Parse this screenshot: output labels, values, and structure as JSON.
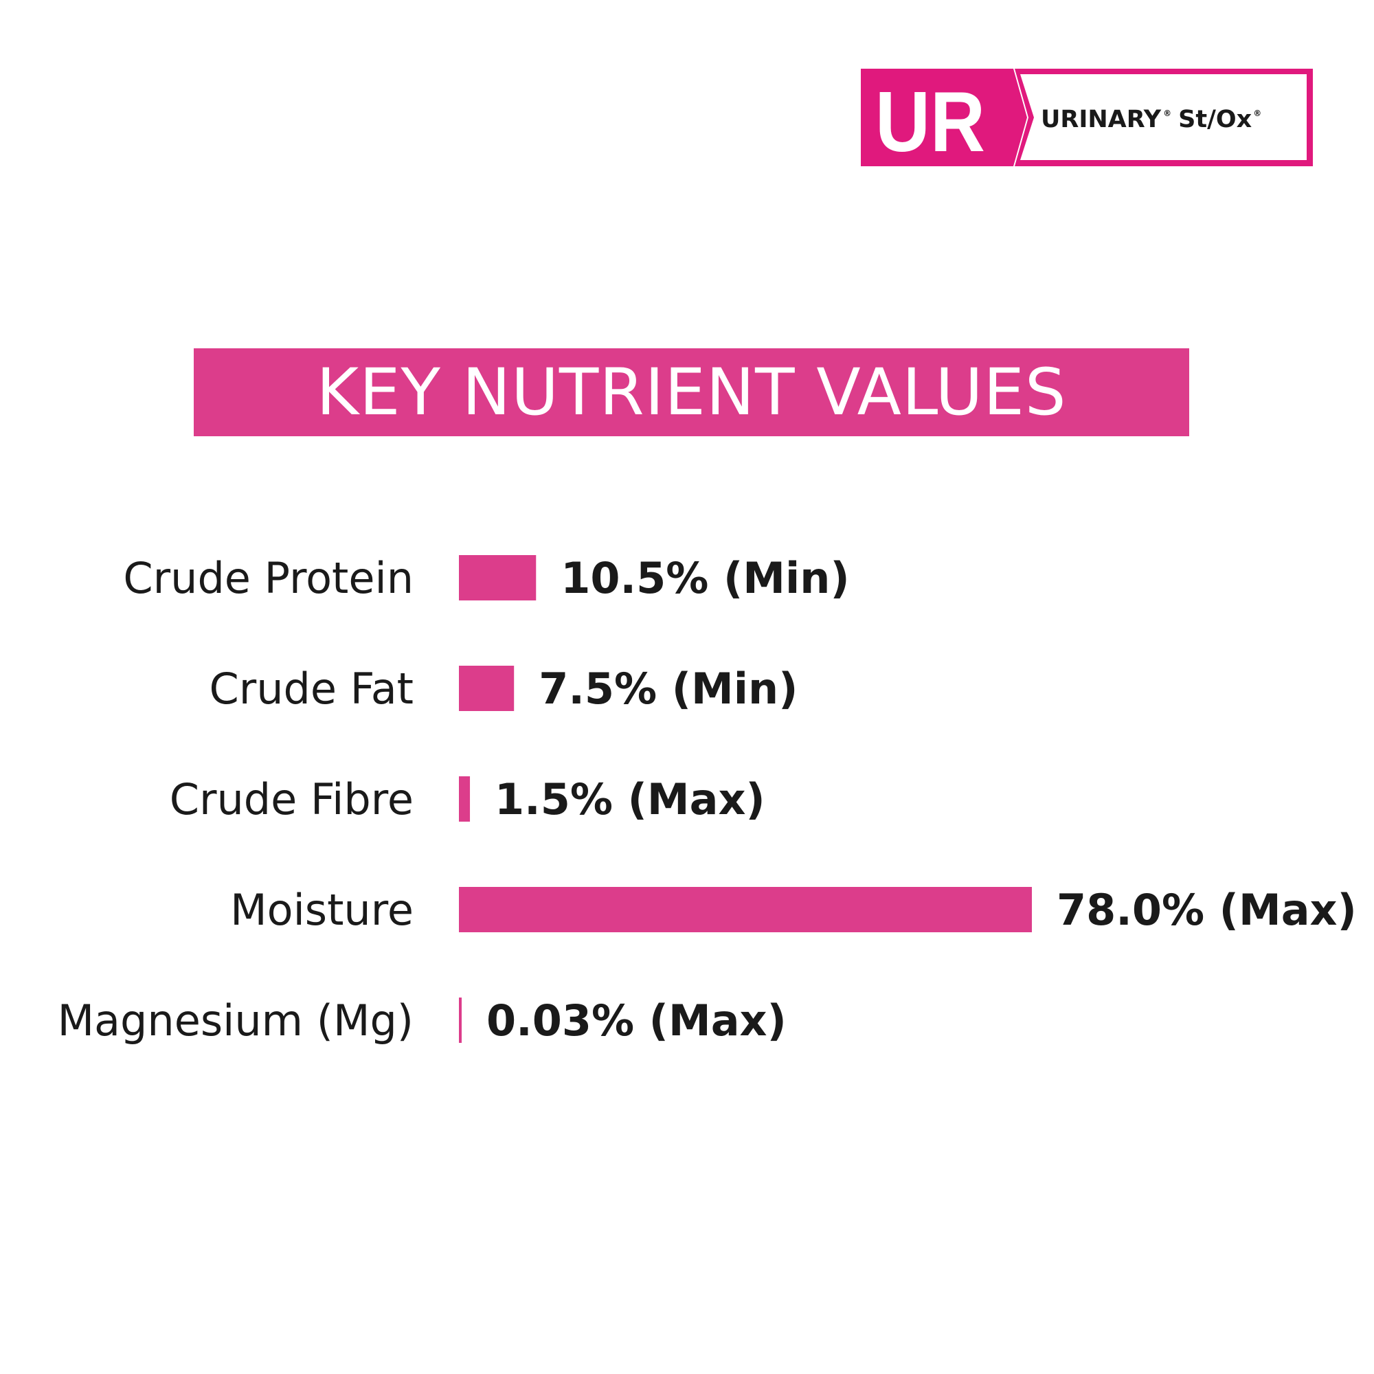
{
  "brand": {
    "code": "UR",
    "name": "URINARY",
    "name_mark": "®",
    "variant": "St/Ox",
    "variant_mark": "®",
    "color": "#e0197d",
    "icon": "brand-badge"
  },
  "chart_data": {
    "type": "bar",
    "orientation": "horizontal",
    "title": "KEY NUTRIENT VALUES",
    "xlabel": "",
    "ylabel": "",
    "grid": false,
    "xlim": [
      0,
      78
    ],
    "unit": "%",
    "bar_color": "#dc3d8b",
    "title_bg_color": "#dc3d8b",
    "categories": [
      "Crude Protein",
      "Crude Fat",
      "Crude Fibre",
      "Moisture",
      "Magnesium (Mg)"
    ],
    "values": [
      10.5,
      7.5,
      1.5,
      78.0,
      0.03
    ],
    "value_labels": [
      "10.5% (Min)",
      "7.5% (Min)",
      "1.5% (Max)",
      "78.0% (Max)",
      "0.03% (Max)"
    ]
  }
}
